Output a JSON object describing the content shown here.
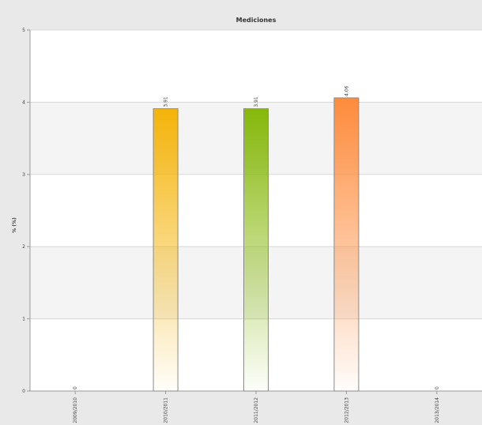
{
  "chart_data": {
    "type": "bar",
    "title": "Mediciones",
    "xlabel": "",
    "ylabel": "% (%)",
    "categories": [
      "2009/2010",
      "2010/2011",
      "2011/2012",
      "2012/2013",
      "2013/2014"
    ],
    "values": [
      0,
      3.91,
      3.91,
      4.06,
      0
    ],
    "value_labels": [
      "0",
      "3.91",
      "3.91",
      "4.06",
      "0"
    ],
    "ylim": [
      0,
      5
    ],
    "yticks": [
      "0",
      "1",
      "2",
      "3",
      "4",
      "5"
    ],
    "grid": true,
    "legend": "none",
    "bar_colors": [
      "#f5b40a",
      "#f5b40a",
      "#86b80a",
      "#ff8c3c",
      "#86b80a"
    ]
  }
}
